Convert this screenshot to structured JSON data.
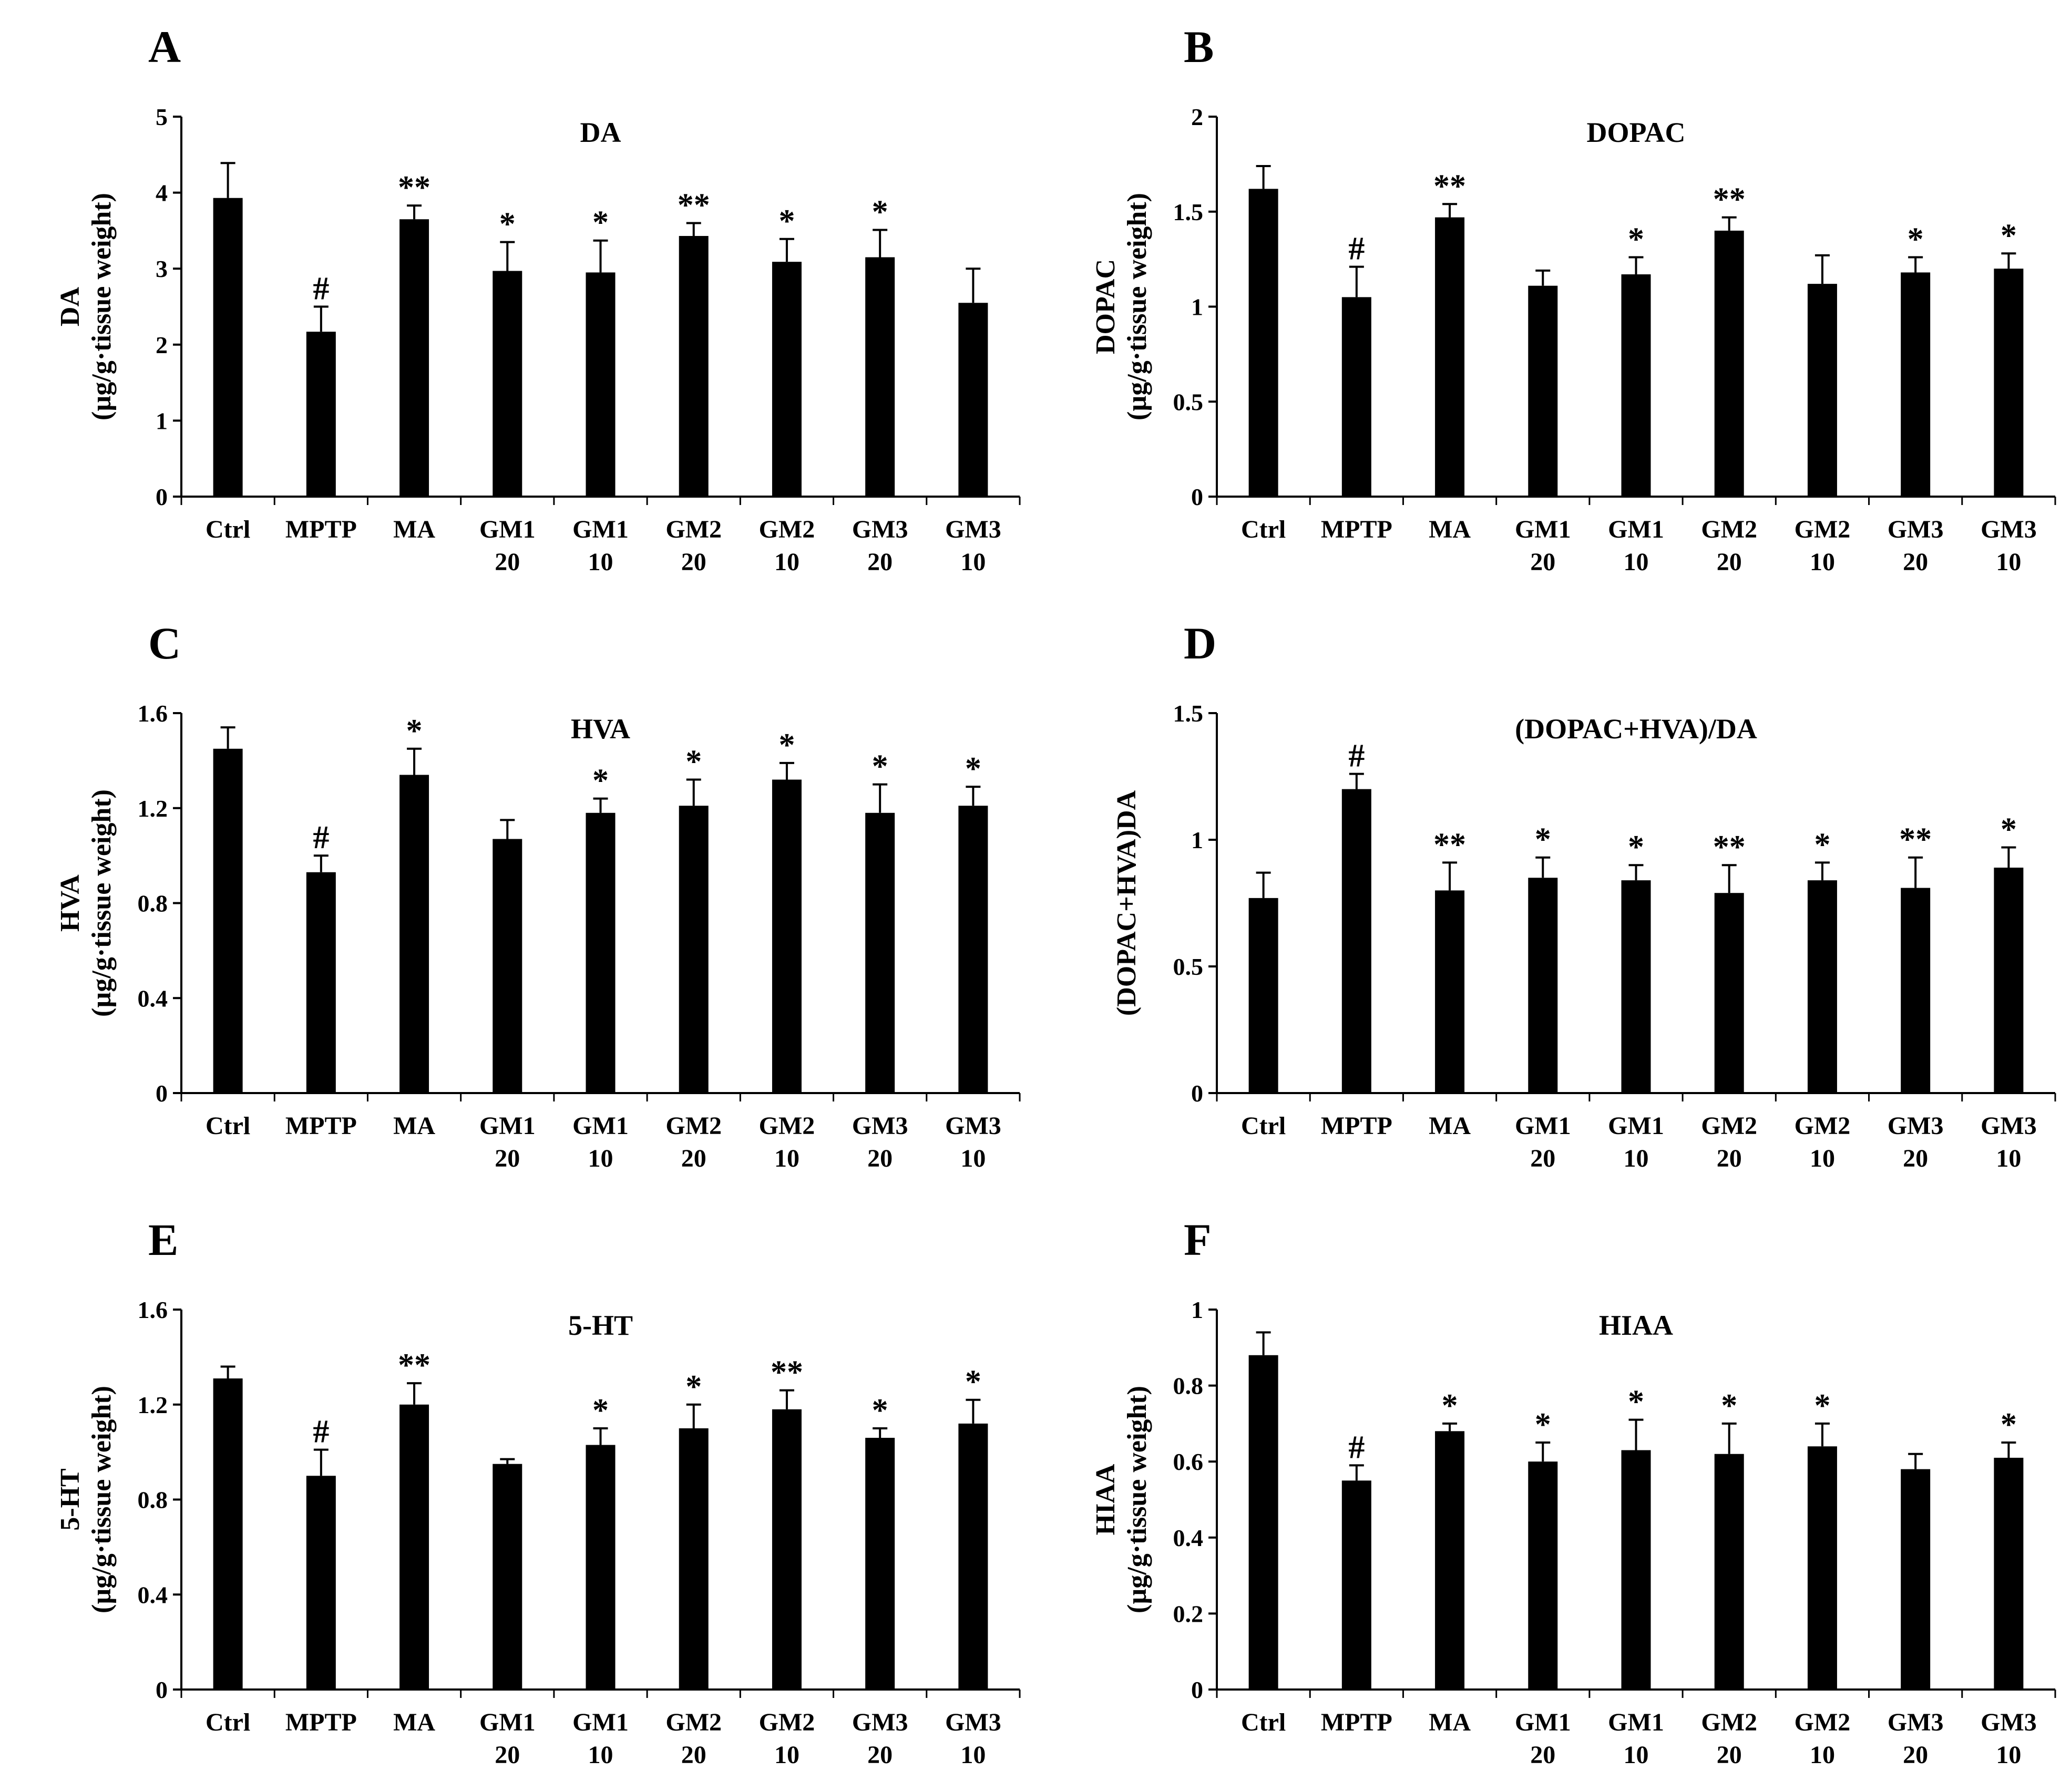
{
  "chart_data": [
    {
      "panel": "A",
      "type": "bar",
      "title": "DA",
      "ylabel": [
        "DA",
        "(µg/g·tissue weight)"
      ],
      "categories": [
        [
          "Ctrl"
        ],
        [
          "MPTP"
        ],
        [
          "MA"
        ],
        [
          "GM1",
          "20"
        ],
        [
          "GM1",
          "10"
        ],
        [
          "GM2",
          "20"
        ],
        [
          "GM2",
          "10"
        ],
        [
          "GM3",
          "20"
        ],
        [
          "GM3",
          "10"
        ]
      ],
      "values": [
        3.93,
        2.17,
        3.65,
        2.97,
        2.95,
        3.43,
        3.09,
        3.15,
        2.55
      ],
      "errors": [
        0.46,
        0.33,
        0.18,
        0.38,
        0.42,
        0.17,
        0.3,
        0.36,
        0.45
      ],
      "significance": [
        "",
        "#",
        "**",
        "*",
        "*",
        "**",
        "*",
        "*",
        ""
      ],
      "ylim": [
        0,
        5
      ],
      "yticks": [
        "0",
        "1",
        "2",
        "3",
        "4",
        "5"
      ]
    },
    {
      "panel": "B",
      "type": "bar",
      "title": "DOPAC",
      "ylabel": [
        "DOPAC",
        "(µg/g·tissue weight)"
      ],
      "categories": [
        [
          "Ctrl"
        ],
        [
          "MPTP"
        ],
        [
          "MA"
        ],
        [
          "GM1",
          "20"
        ],
        [
          "GM1",
          "10"
        ],
        [
          "GM2",
          "20"
        ],
        [
          "GM2",
          "10"
        ],
        [
          "GM3",
          "20"
        ],
        [
          "GM3",
          "10"
        ]
      ],
      "values": [
        1.62,
        1.05,
        1.47,
        1.11,
        1.17,
        1.4,
        1.12,
        1.18,
        1.2
      ],
      "errors": [
        0.12,
        0.16,
        0.07,
        0.08,
        0.09,
        0.07,
        0.15,
        0.08,
        0.08
      ],
      "significance": [
        "",
        "#",
        "**",
        "",
        "*",
        "**",
        "",
        "*",
        "*"
      ],
      "ylim": [
        0,
        2
      ],
      "yticks": [
        "0",
        "0.5",
        "1",
        "1.5",
        "2"
      ]
    },
    {
      "panel": "C",
      "type": "bar",
      "title": "HVA",
      "ylabel": [
        "HVA",
        "(µg/g·tissue weight)"
      ],
      "categories": [
        [
          "Ctrl"
        ],
        [
          "MPTP"
        ],
        [
          "MA"
        ],
        [
          "GM1",
          "20"
        ],
        [
          "GM1",
          "10"
        ],
        [
          "GM2",
          "20"
        ],
        [
          "GM2",
          "10"
        ],
        [
          "GM3",
          "20"
        ],
        [
          "GM3",
          "10"
        ]
      ],
      "values": [
        1.45,
        0.93,
        1.34,
        1.07,
        1.18,
        1.21,
        1.32,
        1.18,
        1.21
      ],
      "errors": [
        0.09,
        0.07,
        0.11,
        0.08,
        0.06,
        0.11,
        0.07,
        0.12,
        0.08
      ],
      "significance": [
        "",
        "#",
        "*",
        "",
        "*",
        "*",
        "*",
        "*",
        "*"
      ],
      "ylim": [
        0,
        1.6
      ],
      "yticks": [
        "0",
        "0.4",
        "0.8",
        "1.2",
        "1.6"
      ]
    },
    {
      "panel": "D",
      "type": "bar",
      "title": "(DOPAC+HVA)/DA",
      "ylabel": [
        "(DOPAC+HVA)DA"
      ],
      "categories": [
        [
          "Ctrl"
        ],
        [
          "MPTP"
        ],
        [
          "MA"
        ],
        [
          "GM1",
          "20"
        ],
        [
          "GM1",
          "10"
        ],
        [
          "GM2",
          "20"
        ],
        [
          "GM2",
          "10"
        ],
        [
          "GM3",
          "20"
        ],
        [
          "GM3",
          "10"
        ]
      ],
      "values": [
        0.77,
        1.2,
        0.8,
        0.85,
        0.84,
        0.79,
        0.84,
        0.81,
        0.89
      ],
      "errors": [
        0.1,
        0.06,
        0.11,
        0.08,
        0.06,
        0.11,
        0.07,
        0.12,
        0.08
      ],
      "significance": [
        "",
        "#",
        "**",
        "*",
        "*",
        "**",
        "*",
        "**",
        "*"
      ],
      "ylim": [
        0,
        1.5
      ],
      "yticks": [
        "0",
        "0.5",
        "1",
        "1.5"
      ]
    },
    {
      "panel": "E",
      "type": "bar",
      "title": "5-HT",
      "ylabel": [
        "5-HT",
        "(µg/g·tissue weight)"
      ],
      "categories": [
        [
          "Ctrl"
        ],
        [
          "MPTP"
        ],
        [
          "MA"
        ],
        [
          "GM1",
          "20"
        ],
        [
          "GM1",
          "10"
        ],
        [
          "GM2",
          "20"
        ],
        [
          "GM2",
          "10"
        ],
        [
          "GM3",
          "20"
        ],
        [
          "GM3",
          "10"
        ]
      ],
      "values": [
        1.31,
        0.9,
        1.2,
        0.95,
        1.03,
        1.1,
        1.18,
        1.06,
        1.12
      ],
      "errors": [
        0.05,
        0.11,
        0.09,
        0.02,
        0.07,
        0.1,
        0.08,
        0.04,
        0.1
      ],
      "significance": [
        "",
        "#",
        "**",
        "",
        "*",
        "*",
        "**",
        "*",
        "*"
      ],
      "ylim": [
        0,
        1.6
      ],
      "yticks": [
        "0",
        "0.4",
        "0.8",
        "1.2",
        "1.6"
      ]
    },
    {
      "panel": "F",
      "type": "bar",
      "title": "HIAA",
      "ylabel": [
        "HIAA",
        "(µg/g·tissue weight)"
      ],
      "categories": [
        [
          "Ctrl"
        ],
        [
          "MPTP"
        ],
        [
          "MA"
        ],
        [
          "GM1",
          "20"
        ],
        [
          "GM1",
          "10"
        ],
        [
          "GM2",
          "20"
        ],
        [
          "GM2",
          "10"
        ],
        [
          "GM3",
          "20"
        ],
        [
          "GM3",
          "10"
        ]
      ],
      "values": [
        0.88,
        0.55,
        0.68,
        0.6,
        0.63,
        0.62,
        0.64,
        0.58,
        0.61
      ],
      "errors": [
        0.06,
        0.04,
        0.02,
        0.05,
        0.08,
        0.08,
        0.06,
        0.04,
        0.04
      ],
      "significance": [
        "",
        "#",
        "*",
        "*",
        "*",
        "*",
        "*",
        "",
        "*"
      ],
      "ylim": [
        0,
        1
      ],
      "yticks": [
        "0",
        "0.2",
        "0.4",
        "0.6",
        "0.8",
        "1"
      ]
    }
  ]
}
